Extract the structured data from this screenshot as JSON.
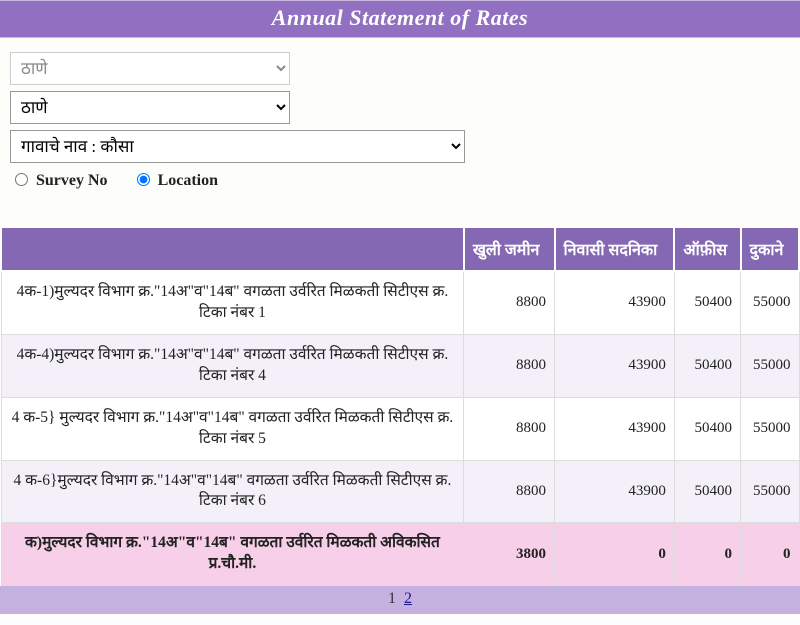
{
  "header": {
    "title": "Annual Statement of Rates"
  },
  "filters": {
    "district_placeholder": "ठाणे",
    "taluka_value": "ठाणे",
    "village_value": "गावाचे नाव : कौसा",
    "radio": {
      "survey_label": "Survey No",
      "location_label": "Location",
      "selected": "location"
    }
  },
  "table": {
    "columns": [
      "",
      "खुली जमीन",
      "निवासी सदनिका",
      "ऑफ़ीस",
      "दुकाने"
    ],
    "rows": [
      {
        "desc": "4क-1)मुल्यदर विभाग क्र.\"14अ\"व\"14ब\" वगळता उर्वरित मिळकती सिटीएस क्र. टिका नंबर 1",
        "v": [
          8800,
          43900,
          50400,
          55000
        ],
        "hl": false
      },
      {
        "desc": "4क-4)मुल्यदर विभाग क्र.\"14अ\"व\"14ब\" वगळता उर्वरित मिळकती सिटीएस क्र. टिका नंबर 4",
        "v": [
          8800,
          43900,
          50400,
          55000
        ],
        "hl": false
      },
      {
        "desc": "4 क-5} मुल्यदर विभाग क्र.\"14अ\"व\"14ब\" वगळता उर्वरित मिळकती सिटीएस क्र. टिका नंबर 5",
        "v": [
          8800,
          43900,
          50400,
          55000
        ],
        "hl": false
      },
      {
        "desc": "4 क-6}मुल्यदर विभाग क्र.\"14अ\"व\"14ब\" वगळता उर्वरित मिळकती सिटीएस क्र. टिका नंबर 6",
        "v": [
          8800,
          43900,
          50400,
          55000
        ],
        "hl": false
      },
      {
        "desc": "क)मुल्यदर विभाग क्र.\"14अ\"व\"14ब\" वगळता उर्वरित मिळकती अविकसित प्र.चौ.मी.",
        "v": [
          3800,
          0,
          0,
          0
        ],
        "hl": true
      }
    ]
  },
  "pager": {
    "current": "1",
    "next": "2"
  }
}
